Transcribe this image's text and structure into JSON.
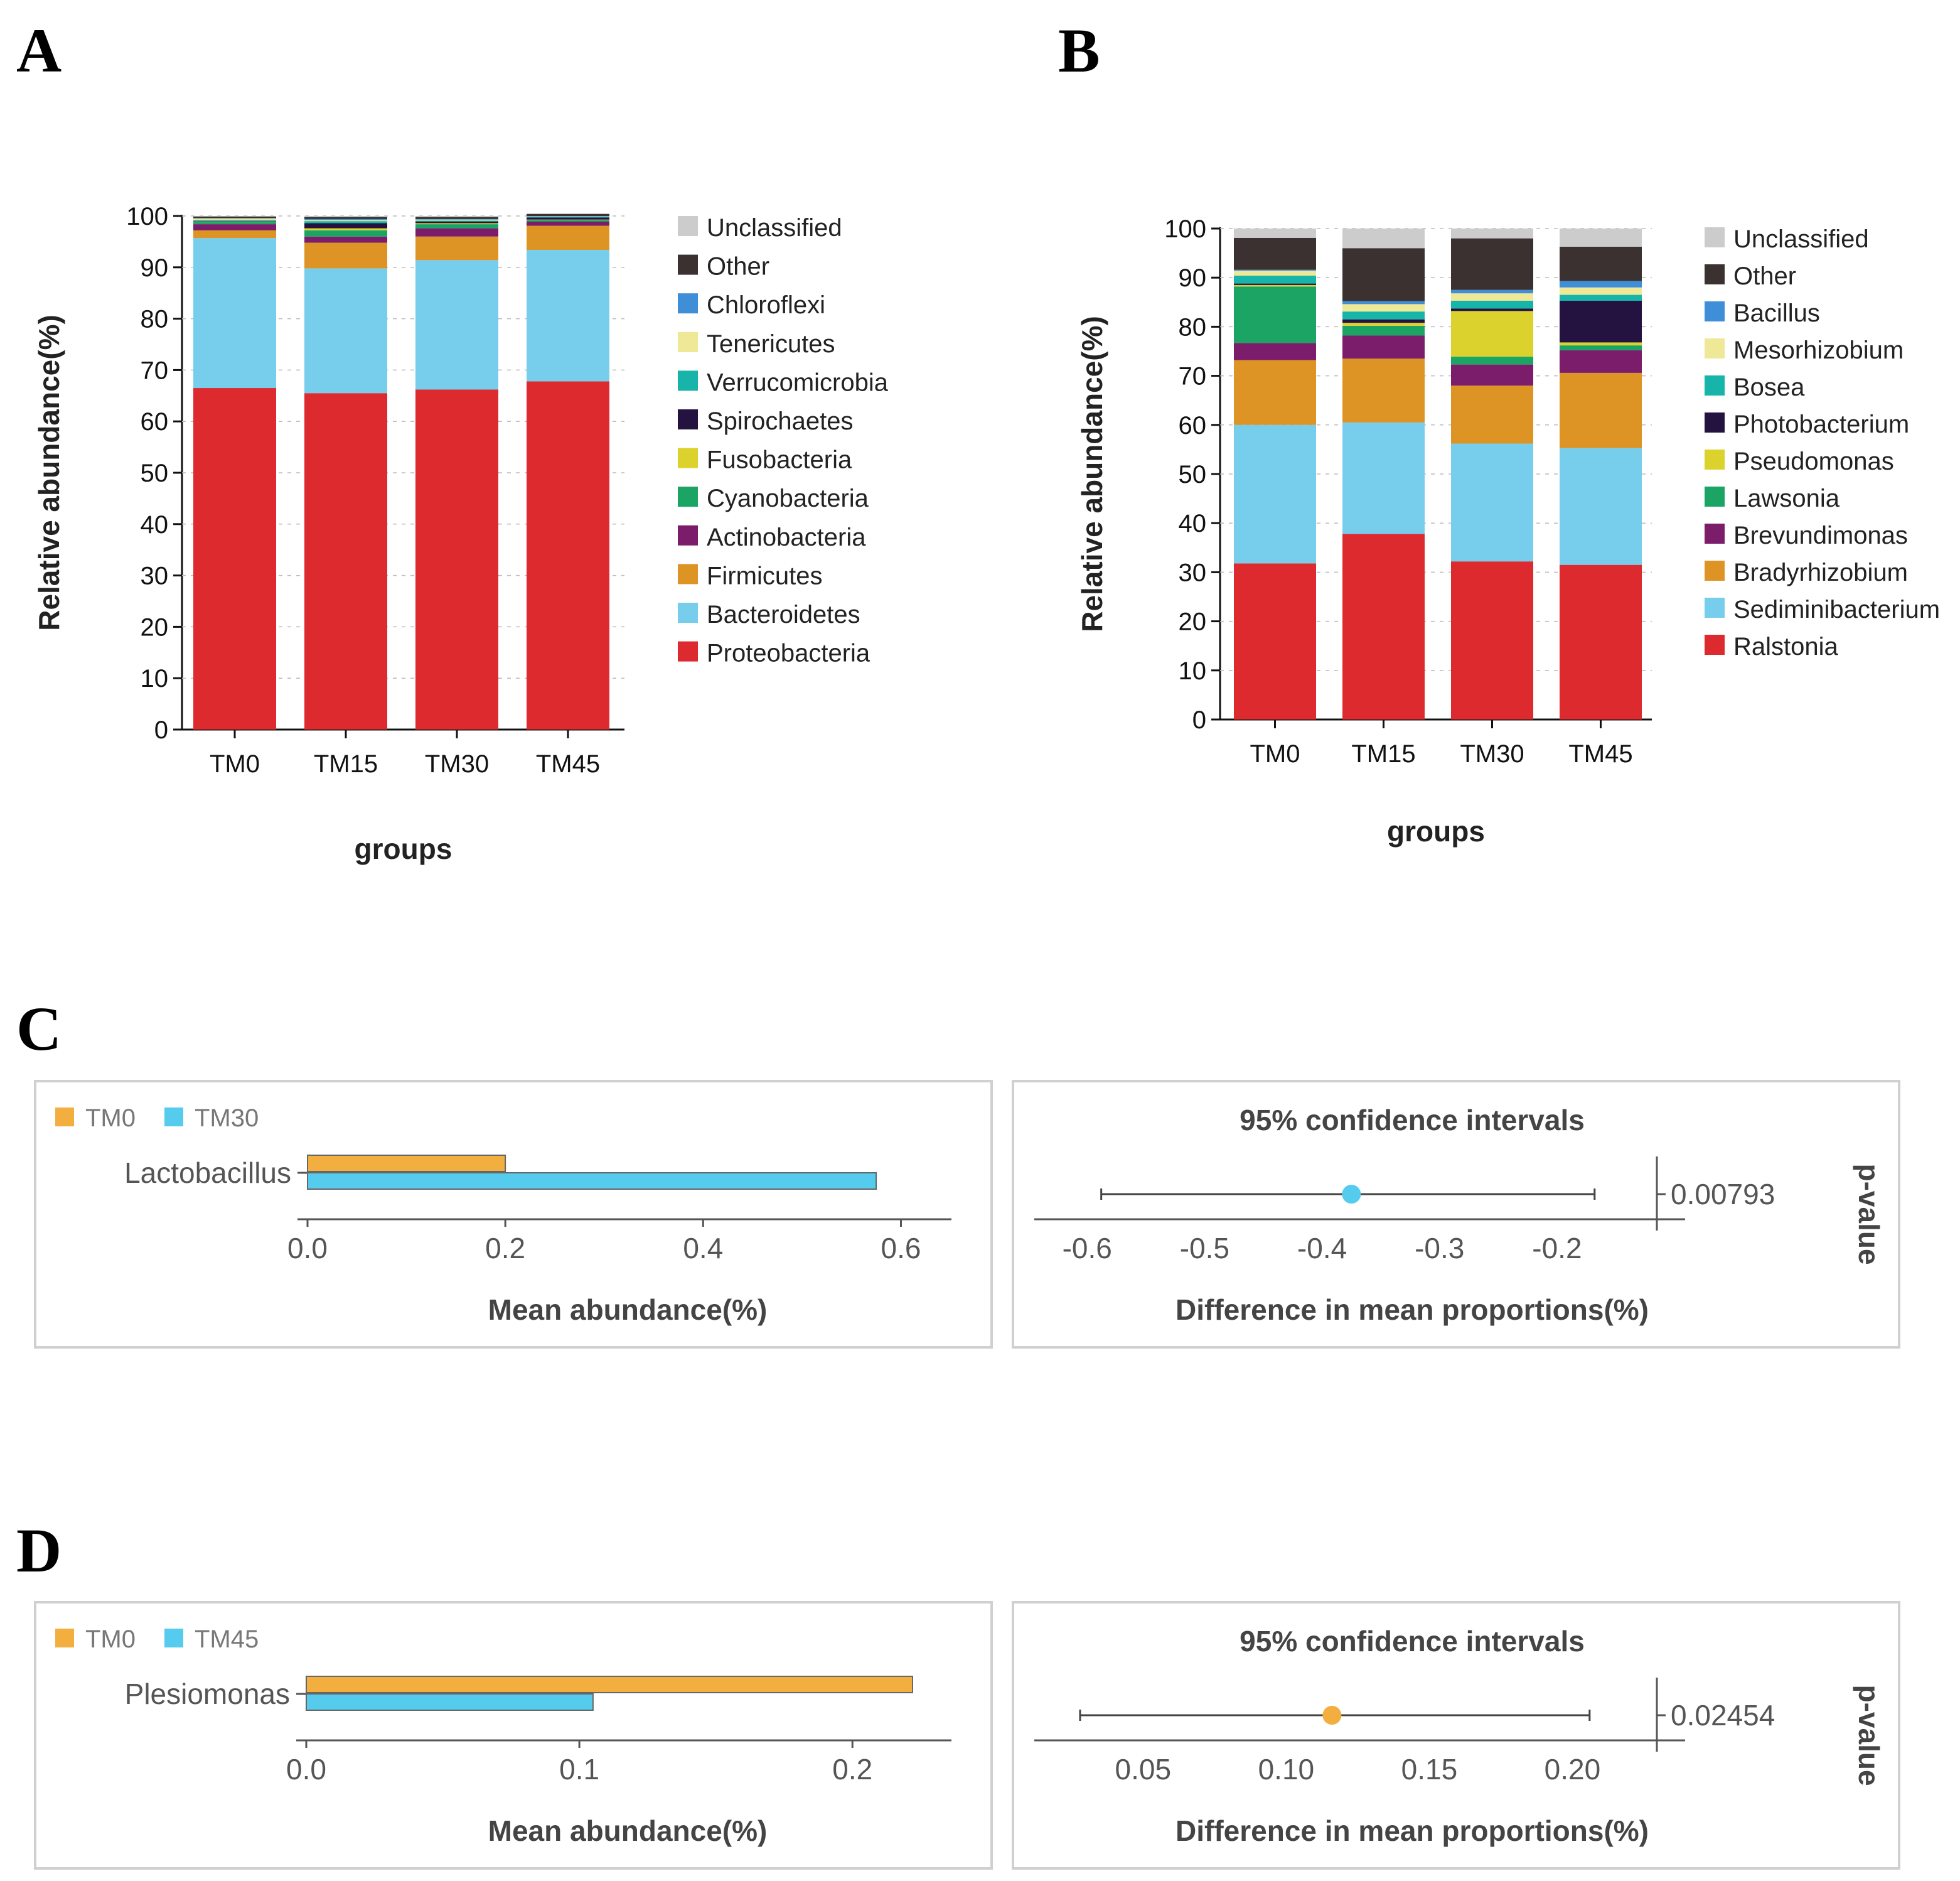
{
  "panels": {
    "A": "A",
    "B": "B",
    "C": "C",
    "D": "D"
  },
  "chart_data": [
    {
      "id": "A",
      "type": "bar",
      "stacked": true,
      "title": "",
      "xlabel": "groups",
      "ylabel": "Relative abundance(%)",
      "ylim": [
        0,
        100
      ],
      "yticks": [
        "0",
        "10",
        "20",
        "30",
        "40",
        "50",
        "60",
        "70",
        "80",
        "90",
        "100"
      ],
      "categories": [
        "TM0",
        "TM15",
        "TM30",
        "TM45"
      ],
      "series": [
        {
          "name": "Proteobacteria",
          "color": "#DC2A2F",
          "values": [
            66.5,
            65.5,
            66.2,
            67.8
          ]
        },
        {
          "name": "Bacteroidetes",
          "color": "#77CEEC",
          "values": [
            29.2,
            24.3,
            25.2,
            25.6
          ]
        },
        {
          "name": "Firmicutes",
          "color": "#DE9424",
          "values": [
            1.5,
            5.0,
            4.6,
            4.7
          ]
        },
        {
          "name": "Actinobacteria",
          "color": "#7B1D6A",
          "values": [
            1.2,
            1.2,
            1.6,
            0.8
          ]
        },
        {
          "name": "Cyanobacteria",
          "color": "#1CA464",
          "values": [
            0.4,
            1.2,
            0.8,
            0.3
          ]
        },
        {
          "name": "Fusobacteria",
          "color": "#DCD22D",
          "values": [
            0.1,
            0.4,
            0.2,
            0.1
          ]
        },
        {
          "name": "Spirochaetes",
          "color": "#241340",
          "values": [
            0.1,
            1.0,
            0.3,
            0.4
          ]
        },
        {
          "name": "Verrucomicrobia",
          "color": "#17B4AA",
          "values": [
            0.2,
            0.4,
            0.2,
            0.1
          ]
        },
        {
          "name": "Tenericutes",
          "color": "#EEE897",
          "values": [
            0.3,
            0.2,
            0.2,
            0.1
          ]
        },
        {
          "name": "Chloroflexi",
          "color": "#3E8FD8",
          "values": [
            0.1,
            0.2,
            0.1,
            0.1
          ]
        },
        {
          "name": "Other",
          "color": "#3A3130",
          "values": [
            0.3,
            0.4,
            0.4,
            0.4
          ]
        },
        {
          "name": "Unclassified",
          "color": "#CCCCCC",
          "values": [
            0.1,
            0.2,
            0.2,
            0.1
          ]
        }
      ]
    },
    {
      "id": "B",
      "type": "bar",
      "stacked": true,
      "title": "",
      "xlabel": "groups",
      "ylabel": "Relative abundance(%)",
      "ylim": [
        0,
        100
      ],
      "yticks": [
        "0",
        "10",
        "20",
        "30",
        "40",
        "50",
        "60",
        "70",
        "80",
        "90",
        "100"
      ],
      "categories": [
        "TM0",
        "TM15",
        "TM30",
        "TM45"
      ],
      "series": [
        {
          "name": "Ralstonia",
          "color": "#DC2A2F",
          "values": [
            31.8,
            37.8,
            32.2,
            31.5
          ]
        },
        {
          "name": "Sediminibacterium",
          "color": "#77CEEC",
          "values": [
            28.2,
            22.7,
            24.0,
            23.8
          ]
        },
        {
          "name": "Bradyrhizobium",
          "color": "#DE9424",
          "values": [
            13.2,
            13.0,
            11.8,
            15.3
          ]
        },
        {
          "name": "Brevundimonas",
          "color": "#7B1D6A",
          "values": [
            3.5,
            4.7,
            4.3,
            4.6
          ]
        },
        {
          "name": "Lawsonia",
          "color": "#1CA464",
          "values": [
            11.5,
            2.0,
            1.6,
            1.0
          ]
        },
        {
          "name": "Pseudomonas",
          "color": "#DCD22D",
          "values": [
            0.3,
            0.6,
            9.3,
            0.6
          ]
        },
        {
          "name": "Photobacterium",
          "color": "#241340",
          "values": [
            0.3,
            0.7,
            0.5,
            8.5
          ]
        },
        {
          "name": "Bosea",
          "color": "#17B4AA",
          "values": [
            1.6,
            1.6,
            1.6,
            1.2
          ]
        },
        {
          "name": "Mesorhizobium",
          "color": "#EEE897",
          "values": [
            1.0,
            1.5,
            1.5,
            1.5
          ]
        },
        {
          "name": "Bacillus",
          "color": "#3E8FD8",
          "values": [
            0.2,
            0.6,
            0.7,
            1.3
          ]
        },
        {
          "name": "Other",
          "color": "#3A3130",
          "values": [
            6.5,
            10.8,
            10.5,
            7.0
          ]
        },
        {
          "name": "Unclassified",
          "color": "#CCCCCC",
          "values": [
            1.9,
            4.0,
            2.0,
            3.7
          ]
        }
      ]
    },
    {
      "id": "C",
      "type": "bar",
      "orientation": "horizontal",
      "title": "",
      "xlabel": "Mean abundance(%)",
      "feature": "Lactobacillus",
      "xlim": [
        0,
        0.62
      ],
      "xticks": [
        "0.0",
        "0.2",
        "0.4",
        "0.6"
      ],
      "xtick_values": [
        0,
        0.2,
        0.4,
        0.6
      ],
      "series": [
        {
          "name": "TM0",
          "color": "#F2AE3E",
          "values": [
            0.2
          ]
        },
        {
          "name": "TM30",
          "color": "#55CCEE",
          "values": [
            0.575
          ]
        }
      ],
      "ci": {
        "title": "95% confidence intervals",
        "xlabel": "Difference in mean proportions(%)",
        "xlim": [
          -0.645,
          -0.115
        ],
        "xticks": [
          "-0.6",
          "-0.5",
          "-0.4",
          "-0.3",
          "-0.2"
        ],
        "xtick_values": [
          -0.6,
          -0.5,
          -0.4,
          -0.3,
          -0.2
        ],
        "estimate": -0.375,
        "lower": -0.588,
        "upper": -0.168,
        "point_color": "#55CCEE",
        "p_value": "0.00793",
        "p_label": "p-value"
      }
    },
    {
      "id": "D",
      "type": "bar",
      "orientation": "horizontal",
      "title": "",
      "xlabel": "Mean abundance(%)",
      "feature": "Plesiomonas",
      "xlim": [
        0,
        0.242
      ],
      "xticks": [
        "0.0",
        "0.1",
        "0.2"
      ],
      "xtick_values": [
        0,
        0.1,
        0.2
      ],
      "series": [
        {
          "name": "TM0",
          "color": "#F2AE3E",
          "values": [
            0.222
          ]
        },
        {
          "name": "TM45",
          "color": "#55CCEE",
          "values": [
            0.105
          ]
        }
      ],
      "ci": {
        "title": "95% confidence intervals",
        "xlabel": "Difference in mean proportions(%)",
        "xlim": [
          0.012,
          0.2295
        ],
        "xticks": [
          "0.05",
          "0.10",
          "0.15",
          "0.20"
        ],
        "xtick_values": [
          0.05,
          0.1,
          0.15,
          0.2
        ],
        "estimate": 0.116,
        "lower": 0.028,
        "upper": 0.206,
        "point_color": "#F2AE3E",
        "p_value": "0.02454",
        "p_label": "p-value"
      }
    }
  ]
}
